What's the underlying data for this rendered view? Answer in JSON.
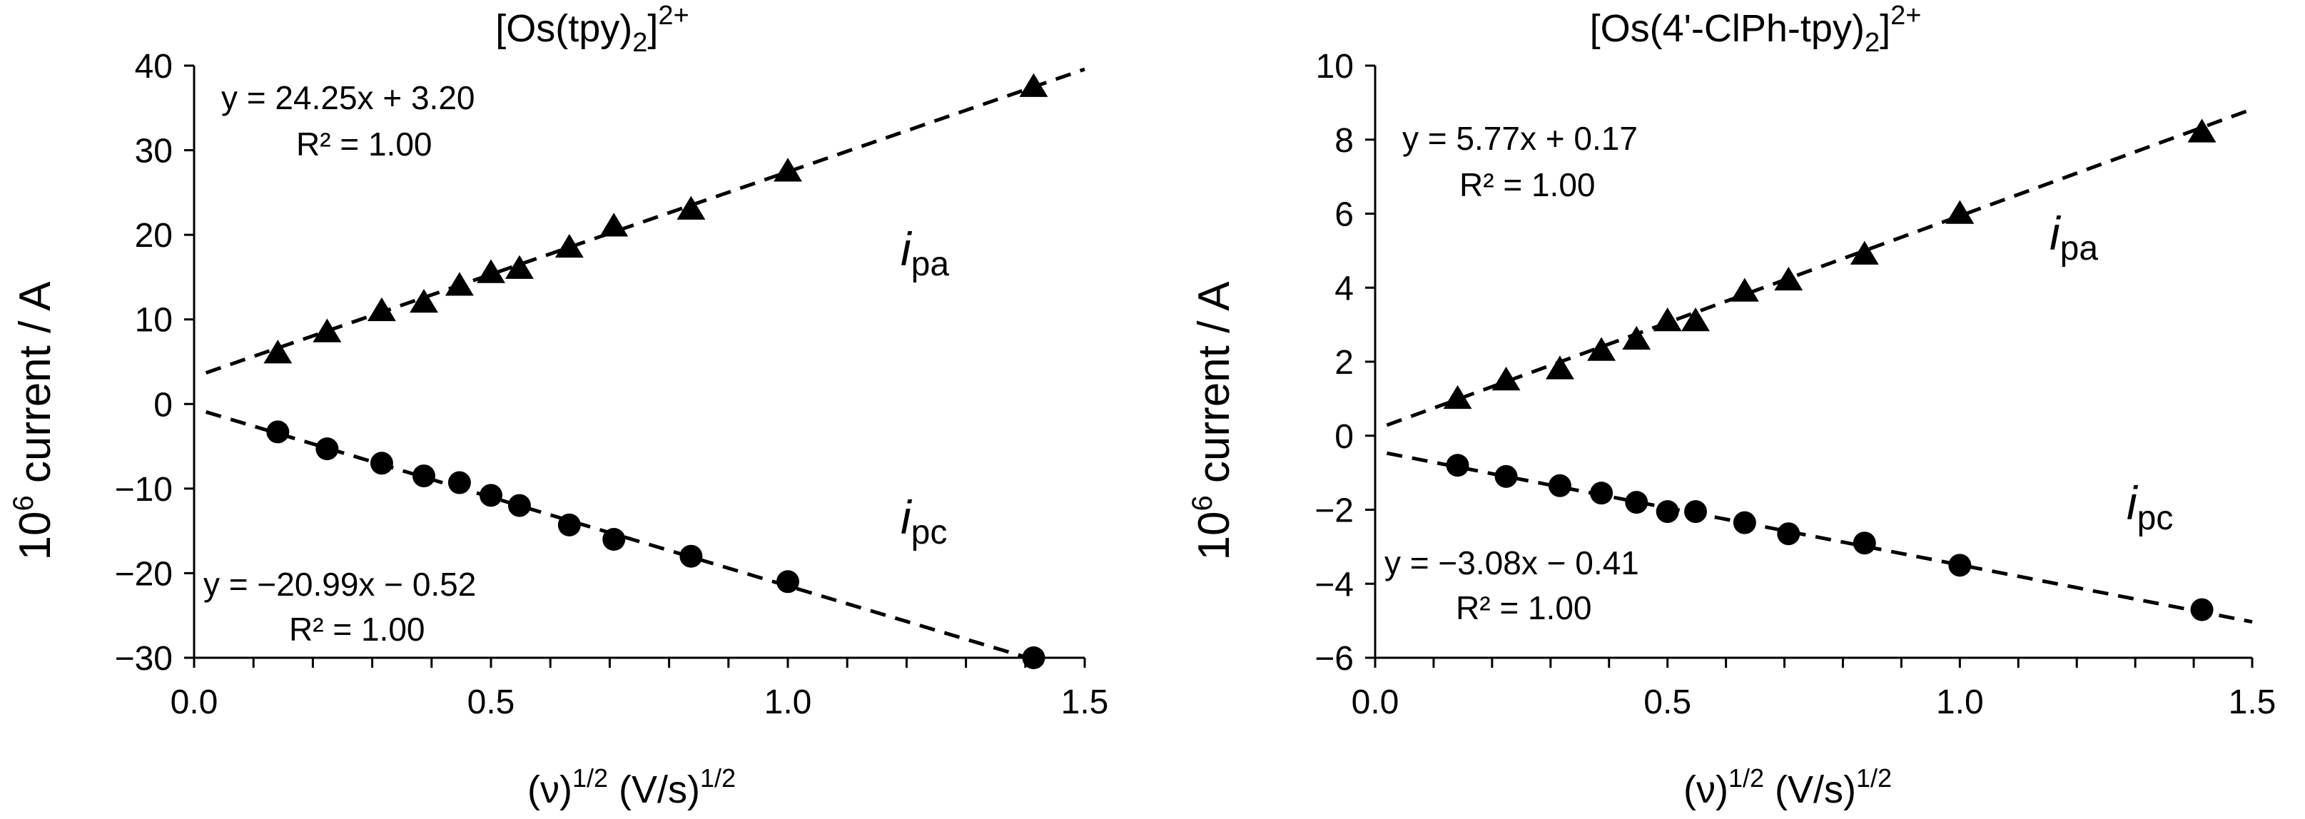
{
  "chart_data": [
    {
      "type": "scatter",
      "title_main": "[Os(tpy)",
      "title_sub": "2",
      "title_tail": "]",
      "title_sup": "2+",
      "xlabel_base": "(ν)",
      "xlabel_sup1": "1/2",
      "xlabel_mid": " (V/s)",
      "xlabel_sup2": "1/2",
      "ylabel_base": "10",
      "ylabel_sup": "6",
      "ylabel_tail": " current / A",
      "xlim": [
        0,
        1.5
      ],
      "ylim": [
        -30,
        40
      ],
      "xticks": [
        0,
        0.5,
        1.0,
        1.5
      ],
      "xtick_labels": [
        "0.0",
        "0.5",
        "1.0",
        "1.5"
      ],
      "yticks": [
        -30,
        -20,
        -10,
        0,
        10,
        20,
        30,
        40
      ],
      "ytick_labels": [
        "−30",
        "−20",
        "−10",
        "0",
        "10",
        "20",
        "30",
        "40"
      ],
      "series": [
        {
          "name": "ipa",
          "label_italic": "i",
          "label_sub": "pa",
          "marker": "triangle",
          "x": [
            0.141,
            0.224,
            0.316,
            0.387,
            0.447,
            0.5,
            0.548,
            0.632,
            0.707,
            0.837,
            1.0,
            1.414
          ],
          "y": [
            6.0,
            8.5,
            11.0,
            12.0,
            14.0,
            15.5,
            16.0,
            18.5,
            21.0,
            23.0,
            27.5,
            37.5
          ],
          "fit": {
            "slope": 24.25,
            "intercept": 3.2,
            "x_range": [
              0.02,
              1.5
            ]
          },
          "equation": "y = 24.25x  + 3.20",
          "r2": "R² = 1.00"
        },
        {
          "name": "ipc",
          "label_italic": "i",
          "label_sub": "pc",
          "marker": "circle",
          "x": [
            0.141,
            0.224,
            0.316,
            0.387,
            0.447,
            0.5,
            0.548,
            0.632,
            0.707,
            0.837,
            1.0,
            1.414
          ],
          "y": [
            -3.3,
            -5.3,
            -7.0,
            -8.5,
            -9.3,
            -10.8,
            -12.0,
            -14.3,
            -16.0,
            -18.0,
            -21.0,
            -30.0
          ],
          "fit": {
            "slope": -20.99,
            "intercept": -0.52,
            "x_range": [
              0.02,
              1.41
            ]
          },
          "equation": "y = −20.99x  − 0.52",
          "r2": "R² = 1.00"
        }
      ]
    },
    {
      "type": "scatter",
      "title_main": "[Os(4'-ClPh-tpy)",
      "title_sub": "2",
      "title_tail": "]",
      "title_sup": "2+",
      "xlabel_base": "(ν)",
      "xlabel_sup1": "1/2",
      "xlabel_mid": " (V/s)",
      "xlabel_sup2": "1/2",
      "ylabel_base": "10",
      "ylabel_sup": "6",
      "ylabel_tail": " current / A",
      "xlim": [
        0,
        1.5
      ],
      "ylim": [
        -6,
        10
      ],
      "xticks": [
        0,
        0.5,
        1.0,
        1.5
      ],
      "xtick_labels": [
        "0.0",
        "0.5",
        "1.0",
        "1.5"
      ],
      "yticks": [
        -6,
        -4,
        -2,
        0,
        2,
        4,
        6,
        8,
        10
      ],
      "ytick_labels": [
        "−6",
        "−4",
        "−2",
        "0",
        "2",
        "4",
        "6",
        "8",
        "10"
      ],
      "series": [
        {
          "name": "ipa",
          "label_italic": "i",
          "label_sub": "pa",
          "marker": "triangle",
          "x": [
            0.141,
            0.224,
            0.316,
            0.387,
            0.447,
            0.5,
            0.548,
            0.632,
            0.707,
            0.837,
            1.0,
            1.414
          ],
          "y": [
            1.0,
            1.5,
            1.8,
            2.3,
            2.6,
            3.1,
            3.1,
            3.9,
            4.2,
            4.9,
            6.0,
            8.2
          ],
          "fit": {
            "slope": 5.77,
            "intercept": 0.17,
            "x_range": [
              0.02,
              1.5
            ]
          },
          "equation": "y = 5.77x  + 0.17",
          "r2": "R² = 1.00"
        },
        {
          "name": "ipc",
          "label_italic": "i",
          "label_sub": "pc",
          "marker": "circle",
          "x": [
            0.141,
            0.224,
            0.316,
            0.387,
            0.447,
            0.5,
            0.548,
            0.632,
            0.707,
            0.837,
            1.0,
            1.414
          ],
          "y": [
            -0.8,
            -1.1,
            -1.35,
            -1.55,
            -1.8,
            -2.05,
            -2.05,
            -2.35,
            -2.65,
            -2.9,
            -3.5,
            -4.7
          ],
          "fit": {
            "slope": -3.08,
            "intercept": -0.41,
            "x_range": [
              0.02,
              1.5
            ]
          },
          "equation": "y = −3.08x  − 0.41",
          "r2": "R² = 1.00"
        }
      ]
    }
  ]
}
